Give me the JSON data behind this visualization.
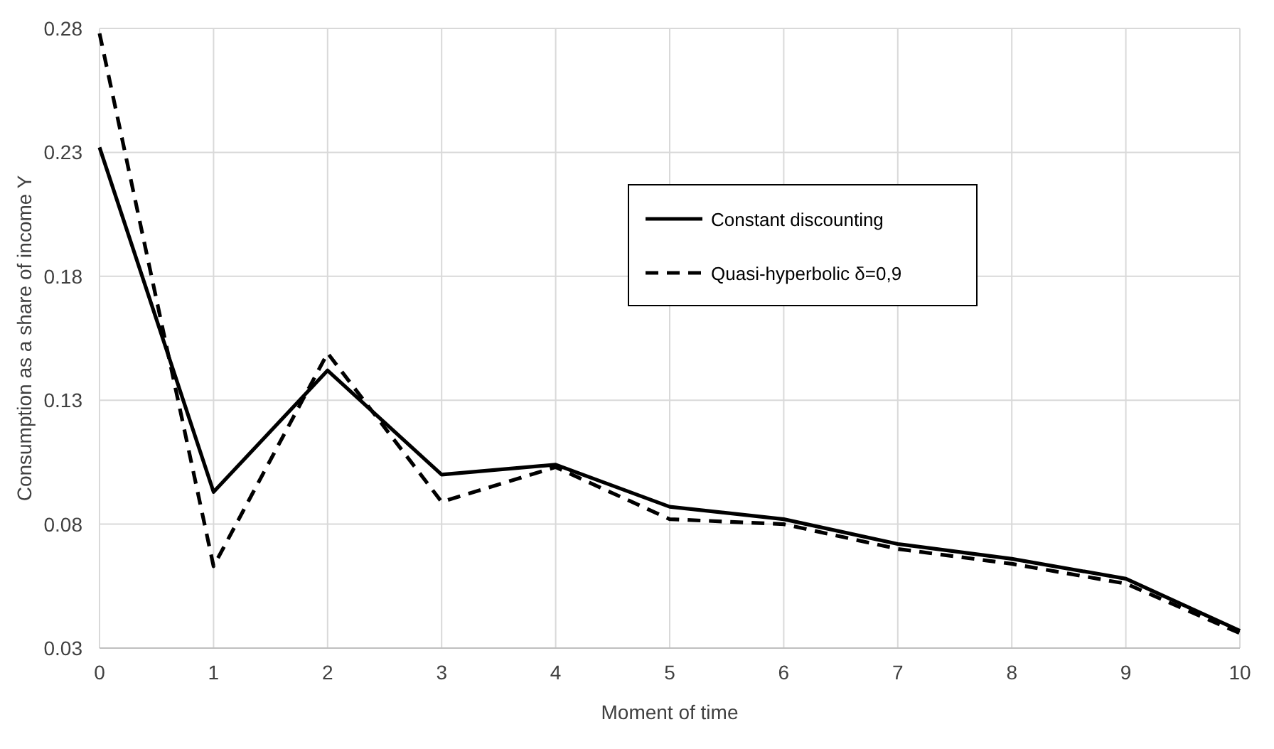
{
  "chart_data": {
    "type": "line",
    "xlabel": "Moment of time",
    "ylabel": "Consumption as a share of income Y",
    "x": [
      0,
      1,
      2,
      3,
      4,
      5,
      6,
      7,
      8,
      9,
      10
    ],
    "xlim": [
      0,
      10
    ],
    "xticks": [
      0,
      1,
      2,
      3,
      4,
      5,
      6,
      7,
      8,
      9,
      10
    ],
    "ylim": [
      0.03,
      0.28
    ],
    "yticks": [
      0.03,
      0.08,
      0.13,
      0.18,
      0.23,
      0.28
    ],
    "grid": true,
    "legend": "top right",
    "series": [
      {
        "name": "Constant discounting",
        "color": "#000000",
        "line_style": "solid",
        "values": [
          0.232,
          0.093,
          0.142,
          0.1,
          0.104,
          0.087,
          0.082,
          0.072,
          0.066,
          0.058,
          0.037
        ]
      },
      {
        "name": "Quasi-hyperbolic δ=0,9",
        "color": "#000000",
        "line_style": "dashed",
        "values": [
          0.278,
          0.063,
          0.149,
          0.089,
          0.103,
          0.082,
          0.08,
          0.07,
          0.064,
          0.056,
          0.036
        ]
      }
    ]
  }
}
